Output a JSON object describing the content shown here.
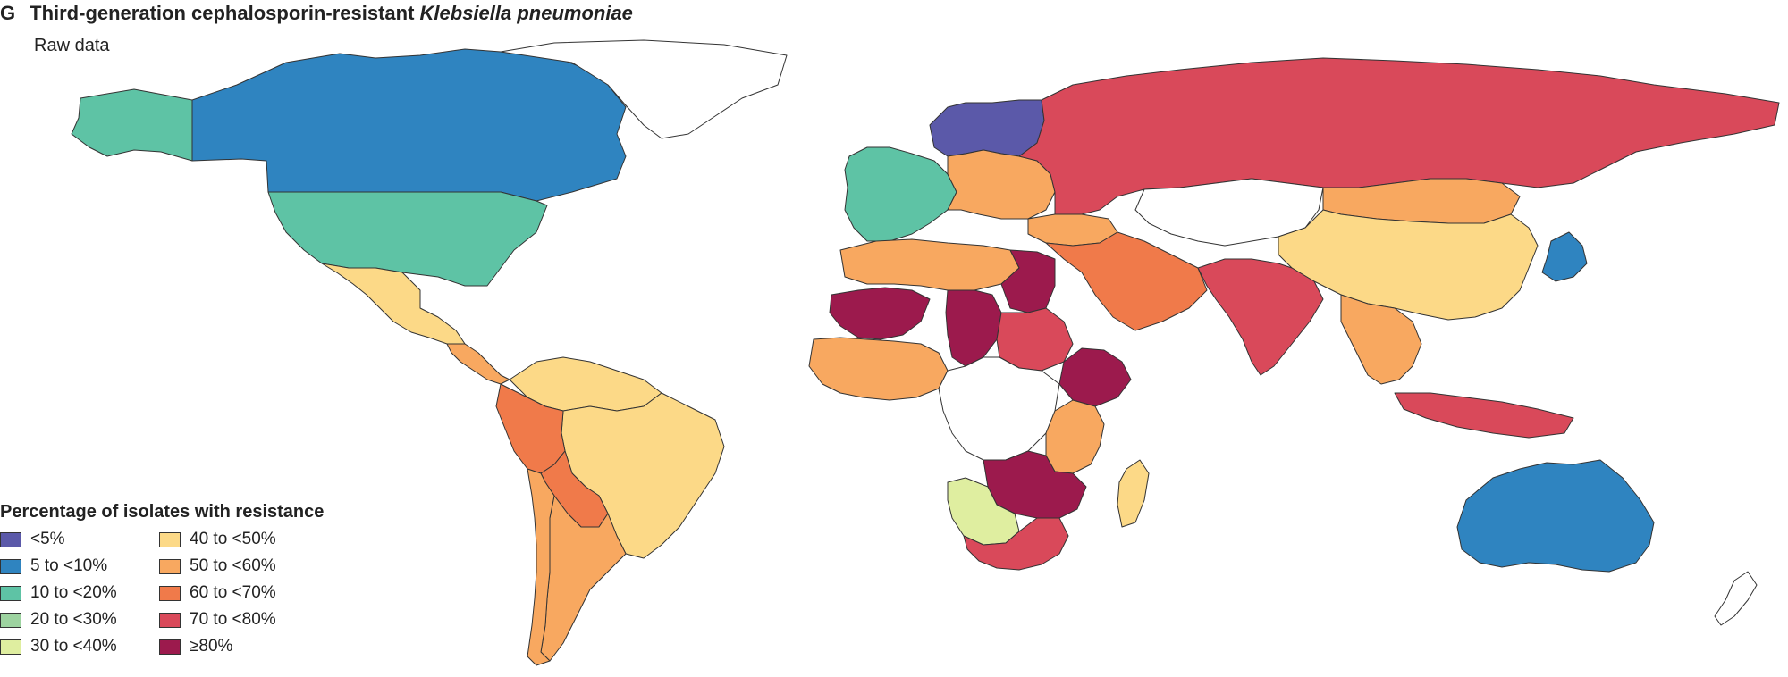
{
  "header": {
    "panel_letter": "G",
    "title_prefix": "Third-generation cephalosporin-resistant ",
    "title_italic": "Klebsiella pneumoniae",
    "subtitle": "Raw data"
  },
  "legend": {
    "title": "Percentage of isolates with resistance",
    "items": [
      {
        "label": "<5%",
        "color": "#5b59a9"
      },
      {
        "label": "5 to <10%",
        "color": "#2f84c0"
      },
      {
        "label": "10 to <20%",
        "color": "#5ec3a5"
      },
      {
        "label": "20 to <30%",
        "color": "#9dd3a0"
      },
      {
        "label": "30 to <40%",
        "color": "#dfeea0"
      },
      {
        "label": "40 to <50%",
        "color": "#fcd987"
      },
      {
        "label": "50 to <60%",
        "color": "#f8a860"
      },
      {
        "label": "60 to <70%",
        "color": "#f07a4a"
      },
      {
        "label": "70 to <80%",
        "color": "#d9495a"
      },
      {
        "label": "≥80%",
        "color": "#9c1a4d"
      }
    ]
  },
  "map_regions": [
    {
      "name": "alaska",
      "bin": 2
    },
    {
      "name": "canada",
      "bin": 1
    },
    {
      "name": "greenland",
      "bin": null
    },
    {
      "name": "usa",
      "bin": 2
    },
    {
      "name": "mexico",
      "bin": 5
    },
    {
      "name": "central-america",
      "bin": 6
    },
    {
      "name": "venezuela-colombia-guianas",
      "bin": 5
    },
    {
      "name": "brazil",
      "bin": 5
    },
    {
      "name": "peru",
      "bin": 7
    },
    {
      "name": "bolivia-paraguay",
      "bin": 7
    },
    {
      "name": "argentina",
      "bin": 6
    },
    {
      "name": "chile",
      "bin": 6
    },
    {
      "name": "scandinavia",
      "bin": 0
    },
    {
      "name": "western-europe",
      "bin": 2
    },
    {
      "name": "eastern-europe",
      "bin": 6
    },
    {
      "name": "russia",
      "bin": 8
    },
    {
      "name": "kazakhstan-central-asia",
      "bin": null
    },
    {
      "name": "china",
      "bin": 5
    },
    {
      "name": "mongolia",
      "bin": 6
    },
    {
      "name": "japan",
      "bin": 1
    },
    {
      "name": "india",
      "bin": 8
    },
    {
      "name": "middle-east",
      "bin": 7
    },
    {
      "name": "turkey",
      "bin": 6
    },
    {
      "name": "southeast-asia",
      "bin": 6
    },
    {
      "name": "indonesia",
      "bin": 8
    },
    {
      "name": "north-africa",
      "bin": 6
    },
    {
      "name": "egypt",
      "bin": 9
    },
    {
      "name": "sahel-west",
      "bin": 9
    },
    {
      "name": "west-africa",
      "bin": 6
    },
    {
      "name": "chad",
      "bin": 9
    },
    {
      "name": "sudan",
      "bin": 8
    },
    {
      "name": "ethiopia",
      "bin": 9
    },
    {
      "name": "east-africa",
      "bin": 6
    },
    {
      "name": "central-africa",
      "bin": null
    },
    {
      "name": "zambia-zimbabwe",
      "bin": 9
    },
    {
      "name": "botswana-namibia",
      "bin": 4
    },
    {
      "name": "south-africa",
      "bin": 8
    },
    {
      "name": "madagascar",
      "bin": 5
    },
    {
      "name": "australia",
      "bin": 1
    },
    {
      "name": "new-zealand",
      "bin": null
    }
  ]
}
